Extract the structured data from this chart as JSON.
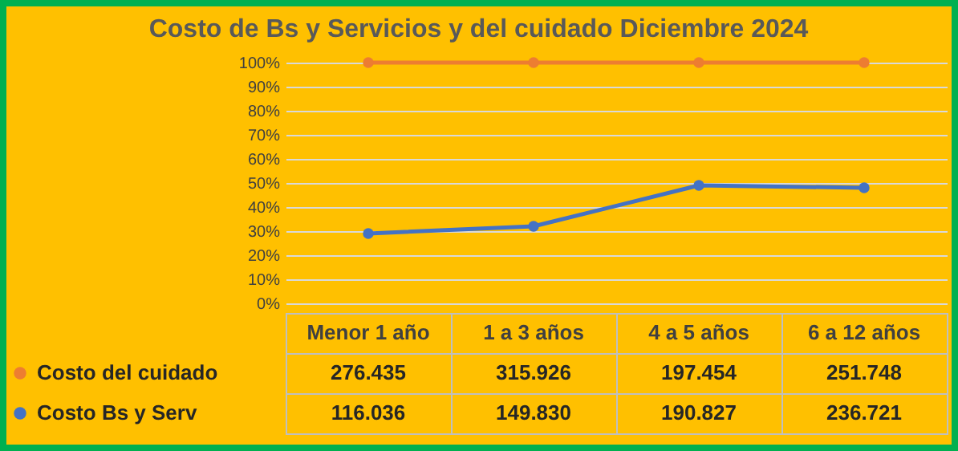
{
  "chart_data": {
    "type": "line",
    "title": "Costo de Bs y Servicios y del cuidado Diciembre 2024",
    "categories": [
      "Menor 1 año",
      "1 a 3 años",
      "4 a 5 años",
      "6 a 12 años"
    ],
    "series": [
      {
        "name": "Costo del cuidado",
        "color": "#ed7d31",
        "values": [
          100,
          100,
          100,
          100
        ]
      },
      {
        "name": "Costo Bs y Serv",
        "color": "#4472c4",
        "values": [
          29,
          32,
          49,
          48
        ]
      }
    ],
    "annotations": [
      "276.435",
      "315.926",
      "197.454",
      "251.748",
      "116.036",
      "149.830",
      "190.827",
      "236.721"
    ],
    "ylim": [
      0,
      100
    ],
    "yticks": [
      {
        "value": 0,
        "label": "0%"
      },
      {
        "value": 10,
        "label": "10%"
      },
      {
        "value": 20,
        "label": "20%"
      },
      {
        "value": 30,
        "label": "30%"
      },
      {
        "value": 40,
        "label": "40%"
      },
      {
        "value": 50,
        "label": "50%"
      },
      {
        "value": 60,
        "label": "60%"
      },
      {
        "value": 70,
        "label": "70%"
      },
      {
        "value": 80,
        "label": "80%"
      },
      {
        "value": 90,
        "label": "90%"
      },
      {
        "value": 100,
        "label": "100%"
      }
    ],
    "grid": "y",
    "legend": "bottom left",
    "marker": "circle",
    "line_style": "solid"
  }
}
